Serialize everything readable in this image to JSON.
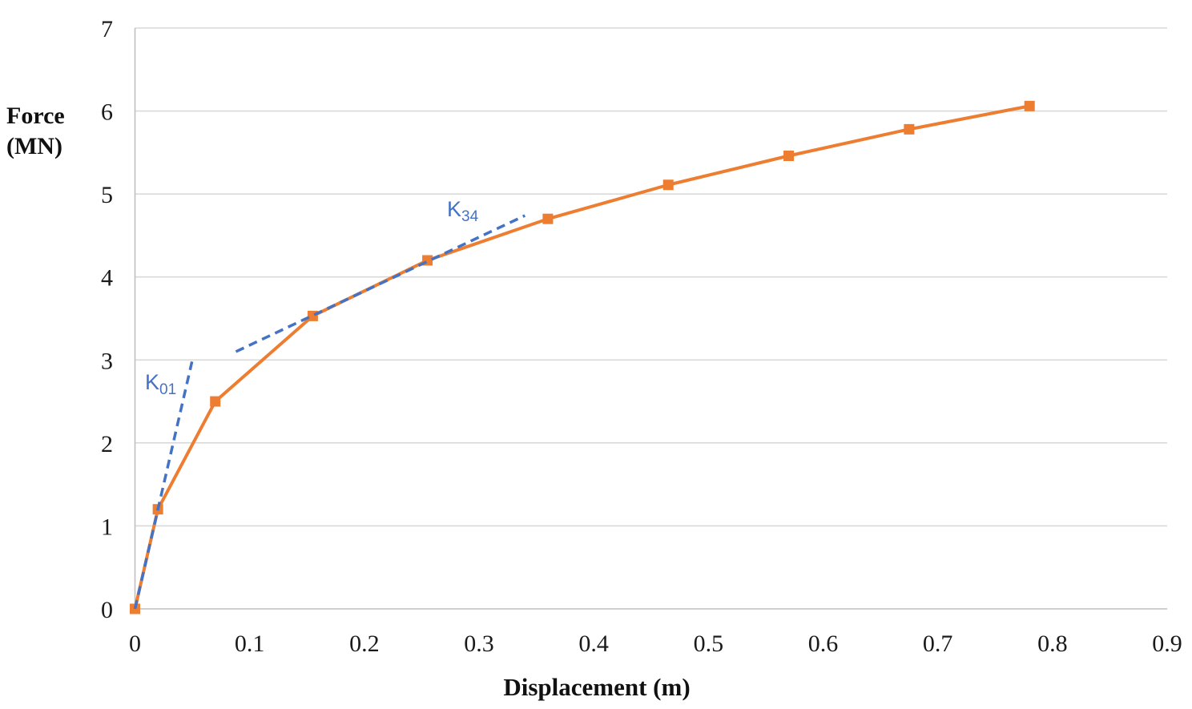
{
  "chart_data": {
    "type": "line",
    "title": "",
    "xlabel": "Displacement (m)",
    "ylabel": "Force (MN)",
    "ylabel_lines": [
      "Force",
      "(MN)"
    ],
    "xlim": [
      0,
      0.9
    ],
    "ylim": [
      0,
      7
    ],
    "xticks": [
      "0",
      "0.1",
      "0.2",
      "0.3",
      "0.4",
      "0.5",
      "0.6",
      "0.7",
      "0.8",
      "0.9"
    ],
    "yticks": [
      "0",
      "1",
      "2",
      "3",
      "4",
      "5",
      "6",
      "7"
    ],
    "grid": "horizontal",
    "legend": "none",
    "grid_color": "#D9D9D9",
    "axis_color": "#BFBFBF",
    "series": [
      {
        "name": "force-displacement-curve",
        "color": "#ED7D31",
        "marker": "square",
        "points": [
          [
            0,
            0
          ],
          [
            0.02,
            1.2
          ],
          [
            0.07,
            2.5
          ],
          [
            0.155,
            3.53
          ],
          [
            0.255,
            4.2
          ],
          [
            0.36,
            4.7
          ],
          [
            0.465,
            5.11
          ],
          [
            0.57,
            5.46
          ],
          [
            0.675,
            5.78
          ],
          [
            0.78,
            6.06
          ]
        ]
      }
    ],
    "annotations": [
      {
        "name": "k01-stiffness-line",
        "label": "K",
        "sub": "01",
        "color": "#4472C4",
        "style": "dashed",
        "points": [
          [
            0,
            0
          ],
          [
            0.0497,
            2.98
          ]
        ]
      },
      {
        "name": "k34-stiffness-line",
        "label": "K",
        "sub": "34",
        "color": "#4472C4",
        "style": "dashed",
        "points": [
          [
            0.088,
            3.1
          ],
          [
            0.34,
            4.74
          ]
        ]
      }
    ]
  }
}
